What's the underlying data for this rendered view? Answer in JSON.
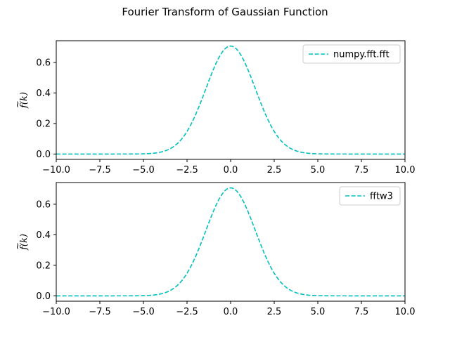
{
  "chart_data": {
    "title": "Fourier Transform of Gaussian Function",
    "colors": {
      "series": "#00bfbf",
      "axis": "#000000",
      "legend_border": "#cccccc"
    },
    "subplots": [
      {
        "type": "line",
        "series": [
          {
            "name": "numpy.fft.fft",
            "style": "dashed"
          }
        ],
        "function": "exp(-x^2/4)/sqrt(2)",
        "xlim": [
          -10,
          10
        ],
        "ylim": [
          -0.035,
          0.742
        ],
        "xticks": [
          -10,
          -7.5,
          -5,
          -2.5,
          0,
          2.5,
          5,
          7.5,
          10
        ],
        "xtick_labels": [
          "−10.0",
          "−7.5",
          "−5.0",
          "−2.5",
          "0.0",
          "2.5",
          "5.0",
          "7.5",
          "10.0"
        ],
        "yticks": [
          0.0,
          0.2,
          0.4,
          0.6
        ],
        "ytick_labels": [
          "0.0",
          "0.2",
          "0.4",
          "0.6"
        ],
        "ylabel_tilde": "~",
        "ylabel": "f(k)",
        "legend": "top-right"
      },
      {
        "type": "line",
        "series": [
          {
            "name": "fftw3",
            "style": "dashed"
          }
        ],
        "function": "exp(-x^2/4)/sqrt(2)",
        "xlim": [
          -10,
          10
        ],
        "ylim": [
          -0.035,
          0.742
        ],
        "xticks": [
          -10,
          -7.5,
          -5,
          -2.5,
          0,
          2.5,
          5,
          7.5,
          10
        ],
        "xtick_labels": [
          "−10.0",
          "−7.5",
          "−5.0",
          "−2.5",
          "0.0",
          "2.5",
          "5.0",
          "7.5",
          "10.0"
        ],
        "yticks": [
          0.0,
          0.2,
          0.4,
          0.6
        ],
        "ytick_labels": [
          "0.0",
          "0.2",
          "0.4",
          "0.6"
        ],
        "ylabel_tilde": "~",
        "ylabel": "f(k)",
        "legend": "top-right"
      }
    ]
  }
}
